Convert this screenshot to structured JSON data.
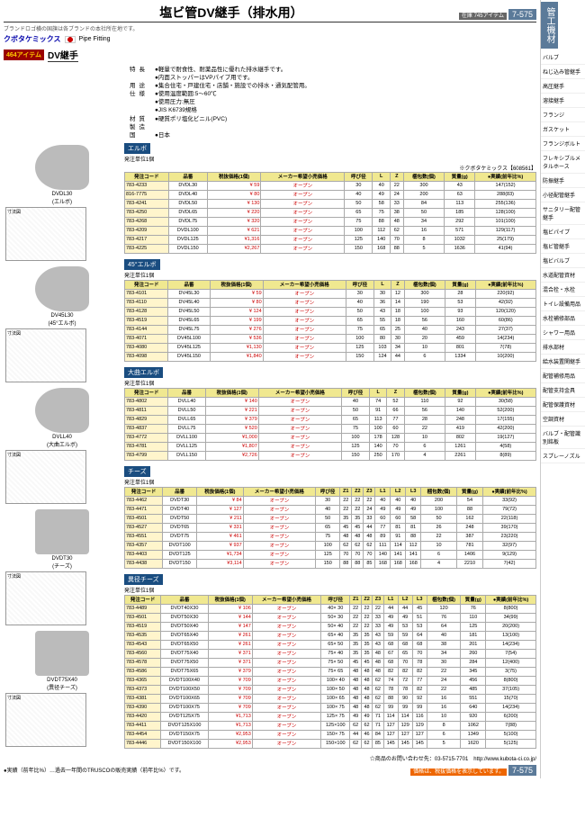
{
  "header": {
    "title": "塩ビ管DV継手（排水用）",
    "page": "7-575",
    "stock": "在庫 745アイテム"
  },
  "note": "ブランドロゴ横の国旗は各ブランドの本社所在地です。",
  "brand": {
    "name": "クボタケミックス",
    "category": "Pipe Fitting",
    "badge": "464アイテム",
    "section": "DV継手"
  },
  "specs": [
    {
      "l": "特長",
      "v": "●軽量で耐食性、耐薬品性に優れた排水継手です。\n●内面ストッパーはVPパイプ用です。"
    },
    {
      "l": "用途",
      "v": "●集合住宅・戸建住宅・店舗・施設での排水・通気配管用。"
    },
    {
      "l": "仕様",
      "v": "●使用温度範囲:5〜60℃\n●使用圧力:無圧\n●JIS K6739規格"
    },
    {
      "l": "材質",
      "v": "●硬質ポリ塩化ビニル(PVC)"
    },
    {
      "l": "製造国",
      "v": "●日本"
    }
  ],
  "maker_ref": "※クボタケミックス【608561】",
  "products": [
    {
      "img": "elbow",
      "caption": "DVDL30\n(エルボ)"
    },
    {
      "img": "elbow",
      "caption": "DV45L30\n(45°エルボ)"
    },
    {
      "img": "elbow",
      "caption": "DVLL40\n(大曲エルボ)"
    },
    {
      "img": "tee",
      "caption": "DVDT30\n(チーズ)"
    },
    {
      "img": "tee",
      "caption": "DVDT75X40\n(異径チーズ)"
    }
  ],
  "groups": [
    {
      "name": "エルボ",
      "unit": "発注単位1個",
      "cols": [
        "発注コード",
        "品番",
        "税抜価格(1個)",
        "メーカー希望小売価格",
        "呼び径",
        "L",
        "Z",
        "梱包数(個)",
        "質量(g)",
        "●実績(前年比%)"
      ],
      "rows": [
        [
          "783-4233",
          "DVDL30",
          "¥ 59",
          "オープン",
          "30",
          "40",
          "22",
          "300",
          "43",
          "147(152)"
        ],
        [
          "816-7775",
          "DVDL40",
          "¥ 80",
          "オープン",
          "40",
          "49",
          "24",
          "200",
          "63",
          "288(83)"
        ],
        [
          "783-4241",
          "DVDL50",
          "¥ 130",
          "オープン",
          "50",
          "58",
          "33",
          "84",
          "113",
          "255(136)"
        ],
        [
          "783-4250",
          "DVDL65",
          "¥ 220",
          "オープン",
          "65",
          "75",
          "38",
          "50",
          "185",
          "128(100)"
        ],
        [
          "783-4268",
          "DVDL75",
          "¥ 320",
          "オープン",
          "75",
          "88",
          "48",
          "34",
          "292",
          "101(100)"
        ],
        [
          "783-4209",
          "DVDL100",
          "¥ 621",
          "オープン",
          "100",
          "112",
          "62",
          "16",
          "571",
          "129(117)"
        ],
        [
          "783-4217",
          "DVDL125",
          "¥1,316",
          "オープン",
          "125",
          "140",
          "70",
          "8",
          "1032",
          "25(179)"
        ],
        [
          "783-4225",
          "DVDL150",
          "¥2,267",
          "オープン",
          "150",
          "168",
          "88",
          "5",
          "1636",
          "41(94)"
        ]
      ]
    },
    {
      "name": "45°エルボ",
      "unit": "発注単位1個",
      "cols": [
        "発注コード",
        "品番",
        "税抜価格(1個)",
        "メーカー希望小売価格",
        "呼び径",
        "L",
        "Z",
        "梱包数(個)",
        "質量(g)",
        "●実績(前年比%)"
      ],
      "rows": [
        [
          "783-4101",
          "DV45L30",
          "¥ 59",
          "オープン",
          "30",
          "30",
          "12",
          "300",
          "28",
          "220(92)"
        ],
        [
          "783-4110",
          "DV45L40",
          "¥ 80",
          "オープン",
          "40",
          "36",
          "14",
          "190",
          "53",
          "42(92)"
        ],
        [
          "783-4128",
          "DV45L50",
          "¥ 124",
          "オープン",
          "50",
          "43",
          "18",
          "100",
          "93",
          "120(120)"
        ],
        [
          "783-4519",
          "DV45L65",
          "¥ 199",
          "オープン",
          "65",
          "55",
          "18",
          "56",
          "160",
          "60(86)"
        ],
        [
          "783-4144",
          "DV45L75",
          "¥ 276",
          "オープン",
          "75",
          "65",
          "25",
          "40",
          "243",
          "27(37)"
        ],
        [
          "783-4071",
          "DV45L100",
          "¥ 536",
          "オープン",
          "100",
          "80",
          "30",
          "20",
          "459",
          "14(234)"
        ],
        [
          "783-4080",
          "DV45L125",
          "¥1,130",
          "オープン",
          "125",
          "103",
          "34",
          "10",
          "801",
          "7(78)"
        ],
        [
          "783-4098",
          "DV45L150",
          "¥1,840",
          "オープン",
          "150",
          "124",
          "44",
          "6",
          "1334",
          "10(200)"
        ]
      ]
    },
    {
      "name": "大曲エルボ",
      "unit": "発注単位1個",
      "cols": [
        "発注コード",
        "品番",
        "税抜価格(1個)",
        "メーカー希望小売価格",
        "呼び径",
        "L",
        "Z",
        "梱包数(個)",
        "質量(g)",
        "●実績(前年比%)"
      ],
      "rows": [
        [
          "783-4802",
          "DVLL40",
          "¥ 140",
          "オープン",
          "40",
          "74",
          "52",
          "110",
          "92",
          "30(58)"
        ],
        [
          "783-4811",
          "DVLL50",
          "¥ 221",
          "オープン",
          "50",
          "91",
          "66",
          "56",
          "140",
          "52(200)"
        ],
        [
          "783-4829",
          "DVLL65",
          "¥ 379",
          "オープン",
          "65",
          "113",
          "77",
          "28",
          "248",
          "17(155)"
        ],
        [
          "783-4837",
          "DVLL75",
          "¥ 520",
          "オープン",
          "75",
          "100",
          "60",
          "22",
          "419",
          "42(200)"
        ],
        [
          "783-4772",
          "DVLL100",
          "¥1,000",
          "オープン",
          "100",
          "178",
          "128",
          "10",
          "802",
          "19(127)"
        ],
        [
          "783-4781",
          "DVLL125",
          "¥1,807",
          "オープン",
          "125",
          "140",
          "70",
          "6",
          "1261",
          "4(58)"
        ],
        [
          "783-4799",
          "DVLL150",
          "¥2,726",
          "オープン",
          "150",
          "250",
          "170",
          "4",
          "2261",
          "8(89)"
        ]
      ]
    },
    {
      "name": "チーズ",
      "unit": "発注単位1個",
      "cols": [
        "発注コード",
        "品番",
        "税抜価格(1個)",
        "メーカー希望小売価格",
        "呼び径",
        "Z1",
        "Z2",
        "Z3",
        "L1",
        "L2",
        "L3",
        "梱包数(個)",
        "質量(g)",
        "●実績(前年比%)"
      ],
      "rows": [
        [
          "783-4462",
          "DVDT30",
          "¥ 84",
          "オープン",
          "30",
          "22",
          "22",
          "22",
          "40",
          "40",
          "40",
          "200",
          "54",
          "33(92)"
        ],
        [
          "783-4471",
          "DVDT40",
          "¥ 127",
          "オープン",
          "40",
          "22",
          "22",
          "24",
          "49",
          "49",
          "49",
          "100",
          "88",
          "79(72)"
        ],
        [
          "783-4501",
          "DVDT50",
          "¥ 211",
          "オープン",
          "50",
          "35",
          "35",
          "33",
          "60",
          "60",
          "58",
          "50",
          "162",
          "22(118)"
        ],
        [
          "783-4527",
          "DVDT65",
          "¥ 331",
          "オープン",
          "65",
          "45",
          "45",
          "44",
          "77",
          "81",
          "81",
          "26",
          "248",
          "39(170)"
        ],
        [
          "783-4551",
          "DVDT75",
          "¥ 461",
          "オープン",
          "75",
          "48",
          "48",
          "48",
          "89",
          "91",
          "88",
          "22",
          "387",
          "23(220)"
        ],
        [
          "783-4357",
          "DVDT100",
          "¥ 937",
          "オープン",
          "100",
          "62",
          "62",
          "62",
          "111",
          "114",
          "112",
          "10",
          "781",
          "32(97)"
        ],
        [
          "783-4403",
          "DVDT125",
          "¥1,734",
          "オープン",
          "125",
          "70",
          "70",
          "70",
          "140",
          "141",
          "141",
          "6",
          "1406",
          "9(129)"
        ],
        [
          "783-4438",
          "DVDT150",
          "¥3,114",
          "オープン",
          "150",
          "88",
          "88",
          "85",
          "168",
          "168",
          "168",
          "4",
          "2210",
          "7(42)"
        ]
      ]
    },
    {
      "name": "異径チーズ",
      "unit": "発注単位1個",
      "cols": [
        "発注コード",
        "品番",
        "税抜価格(1個)",
        "メーカー希望小売価格",
        "呼び径",
        "Z1",
        "Z2",
        "Z3",
        "L1",
        "L2",
        "L3",
        "梱包数(個)",
        "質量(g)",
        "●実績(前年比%)"
      ],
      "rows": [
        [
          "783-4489",
          "DVDT40X30",
          "¥ 106",
          "オープン",
          "40× 30",
          "22",
          "22",
          "22",
          "44",
          "44",
          "45",
          "120",
          "76",
          "8(800)"
        ],
        [
          "783-4501",
          "DVDT50X30",
          "¥ 144",
          "オープン",
          "50× 30",
          "22",
          "22",
          "33",
          "49",
          "49",
          "51",
          "76",
          "110",
          "34(99)"
        ],
        [
          "783-4519",
          "DVDT50X40",
          "¥ 147",
          "オープン",
          "50× 40",
          "22",
          "22",
          "33",
          "49",
          "53",
          "53",
          "64",
          "125",
          "20(200)"
        ],
        [
          "783-4535",
          "DVDT65X40",
          "¥ 261",
          "オープン",
          "65× 40",
          "35",
          "35",
          "43",
          "59",
          "59",
          "64",
          "40",
          "181",
          "13(100)"
        ],
        [
          "783-4543",
          "DVDT65X50",
          "¥ 261",
          "オープン",
          "65× 50",
          "35",
          "35",
          "43",
          "68",
          "68",
          "68",
          "38",
          "201",
          "14(234)"
        ],
        [
          "783-4560",
          "DVDT75X40",
          "¥ 371",
          "オープン",
          "75× 40",
          "35",
          "35",
          "48",
          "67",
          "65",
          "70",
          "34",
          "260",
          "7(54)"
        ],
        [
          "783-4578",
          "DVDT75X50",
          "¥ 371",
          "オープン",
          "75× 50",
          "45",
          "45",
          "48",
          "68",
          "70",
          "78",
          "30",
          "284",
          "12(400)"
        ],
        [
          "783-4586",
          "DVDT75X65",
          "¥ 379",
          "オープン",
          "75× 65",
          "48",
          "48",
          "48",
          "82",
          "82",
          "82",
          "22",
          "345",
          "3(75)"
        ],
        [
          "783-4365",
          "DVDT100X40",
          "¥ 709",
          "オープン",
          "100× 40",
          "48",
          "48",
          "62",
          "74",
          "72",
          "77",
          "24",
          "456",
          "8(800)"
        ],
        [
          "783-4373",
          "DVDT100X50",
          "¥ 709",
          "オープン",
          "100× 50",
          "48",
          "48",
          "62",
          "78",
          "78",
          "82",
          "22",
          "485",
          "37(105)"
        ],
        [
          "783-4381",
          "DVDT100X65",
          "¥ 709",
          "オープン",
          "100× 65",
          "48",
          "48",
          "62",
          "88",
          "90",
          "92",
          "16",
          "551",
          "15(70)"
        ],
        [
          "783-4390",
          "DVDT100X75",
          "¥ 709",
          "オープン",
          "100× 75",
          "48",
          "48",
          "62",
          "99",
          "99",
          "99",
          "16",
          "640",
          "14(234)"
        ],
        [
          "783-4420",
          "DVDT125X75",
          "¥1,713",
          "オープン",
          "125× 75",
          "49",
          "49",
          "71",
          "114",
          "114",
          "116",
          "10",
          "920",
          "6(200)"
        ],
        [
          "783-4411",
          "DVDT125X100",
          "¥1,713",
          "オープン",
          "125×100",
          "62",
          "62",
          "71",
          "127",
          "129",
          "129",
          "8",
          "1062",
          "7(88)"
        ],
        [
          "783-4454",
          "DVDT150X75",
          "¥2,953",
          "オープン",
          "150× 75",
          "44",
          "46",
          "84",
          "127",
          "127",
          "127",
          "6",
          "1349",
          "5(100)"
        ],
        [
          "783-4446",
          "DVDT150X100",
          "¥2,953",
          "オープン",
          "150×100",
          "62",
          "62",
          "85",
          "145",
          "145",
          "145",
          "5",
          "1620",
          "5(125)"
        ]
      ]
    }
  ],
  "contact": "☆商品のお問い合わせ先：03-5715-7701　http://www.kubota-ci.co.jp/",
  "footer": {
    "l": "●実績（前年比%）…過去一年間のTRUSCOの販売実績（前年比%）です。",
    "r": "価格は、税抜価格を表示しています。",
    "pg": "7-575"
  },
  "sidebar": {
    "tab": "管工機材",
    "items": [
      "バルブ",
      "ねじ込み管継手",
      "高圧継手",
      "溶接継手",
      "フランジ",
      "ガスケット",
      "フランジボルト",
      "フレキシブルメタルホース",
      "防振継手",
      "小径配管継手",
      "サニタリー配管継手",
      "塩ビパイプ",
      "塩ビ管継手",
      "塩ビバルブ",
      "水道配管資材",
      "混合栓・水栓",
      "トイレ設備用品",
      "水栓補修部品",
      "シャワー用品",
      "排水部材",
      "給水装置関継手",
      "配管補修用品",
      "配管支持金具",
      "配管保護資材",
      "空調資材",
      "バルブ・配管識別銘板",
      "スプレーノズル"
    ]
  }
}
